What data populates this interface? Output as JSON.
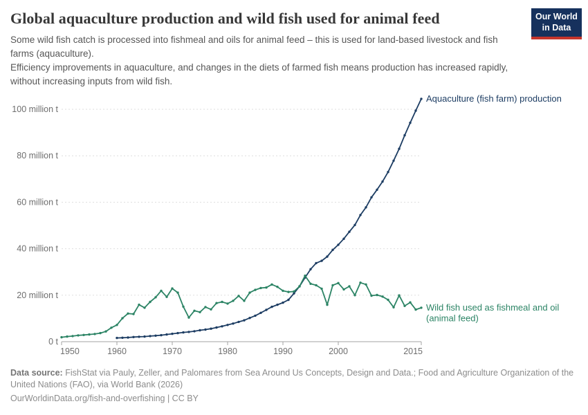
{
  "header": {
    "title": "Global aquaculture production and wild fish used for animal feed",
    "subtitle_para1": "Some wild fish catch is processed into fishmeal and oils for animal feed – this is used for land-based livestock and fish farms (aquaculture).",
    "subtitle_para2": "Efficiency improvements in aquaculture, and changes in the diets of farmed fish means production has increased rapidly, without increasing inputs from wild fish."
  },
  "logo": {
    "line1": "Our World",
    "line2": "in Data",
    "bg_color": "#16315d",
    "accent_color": "#c5352c"
  },
  "chart_data": {
    "type": "line",
    "title": "Global aquaculture production and wild fish used for animal feed",
    "xlabel": "",
    "ylabel": "million t",
    "xlim": [
      1950,
      2015
    ],
    "ylim": [
      0,
      106
    ],
    "grid": "horizontal-dashed",
    "grid_color": "#dedede",
    "axis_color": "#a3a3a3",
    "tick_label_color": "#6e6e6e",
    "legend_position": "end-of-line-labels",
    "x_ticks": [
      1950,
      1960,
      1970,
      1980,
      1990,
      2000,
      2015
    ],
    "y_ticks": [
      {
        "value": 0,
        "label": "0 t"
      },
      {
        "value": 20,
        "label": "20 million t"
      },
      {
        "value": 40,
        "label": "40 million t"
      },
      {
        "value": 60,
        "label": "60 million t"
      },
      {
        "value": 80,
        "label": "80 million t"
      },
      {
        "value": 100,
        "label": "100 million t"
      }
    ],
    "series": [
      {
        "name": "Aquaculture (fish farm) production",
        "label_lines": [
          "Aquaculture (fish farm) production"
        ],
        "color": "#1d3d63",
        "start_year": 1960,
        "values": [
          1.6,
          1.7,
          1.8,
          2.0,
          2.1,
          2.2,
          2.4,
          2.6,
          2.8,
          3.1,
          3.4,
          3.7,
          4.0,
          4.2,
          4.5,
          4.9,
          5.2,
          5.6,
          6.1,
          6.6,
          7.2,
          7.8,
          8.5,
          9.2,
          10.2,
          11.2,
          12.4,
          13.7,
          15.0,
          15.9,
          16.8,
          18.0,
          20.8,
          23.8,
          27.6,
          31.2,
          33.8,
          34.8,
          36.6,
          39.5,
          41.7,
          44.3,
          47.3,
          50.2,
          54.5,
          57.8,
          62.1,
          65.4,
          68.9,
          73.0,
          77.9,
          83.0,
          88.8,
          94.2,
          99.4,
          104.5
        ]
      },
      {
        "name": "Wild fish used as fishmeal and oil (animal feed)",
        "label_lines": [
          "Wild fish used as fishmeal and oil",
          "(animal feed)"
        ],
        "color": "#2c8465",
        "start_year": 1950,
        "values": [
          1.9,
          2.2,
          2.4,
          2.7,
          2.9,
          3.1,
          3.3,
          3.7,
          4.4,
          6.0,
          7.2,
          10.1,
          12.1,
          11.9,
          15.9,
          14.6,
          17.1,
          19.1,
          21.9,
          19.3,
          22.9,
          21.1,
          15.1,
          10.4,
          13.3,
          12.7,
          14.9,
          13.9,
          16.6,
          17.1,
          16.4,
          17.6,
          19.7,
          17.6,
          21.1,
          22.3,
          23.1,
          23.3,
          24.6,
          23.6,
          21.9,
          21.4,
          21.6,
          23.8,
          28.4,
          24.9,
          24.3,
          22.8,
          15.9,
          24.3,
          25.2,
          22.5,
          23.8,
          20.0,
          25.4,
          24.6,
          19.8,
          20.1,
          19.4,
          18.0,
          14.8,
          19.9,
          15.4,
          16.9,
          13.8,
          14.6
        ]
      }
    ]
  },
  "footer": {
    "source_label": "Data source:",
    "source_text": "FishStat via Pauly, Zeller, and Palomares from Sea Around Us Concepts, Design and Data.; Food and Agriculture Organization of the United Nations (FAO), via World Bank (2026)",
    "link_line": "OurWorldinData.org/fish-and-overfishing | CC BY"
  }
}
